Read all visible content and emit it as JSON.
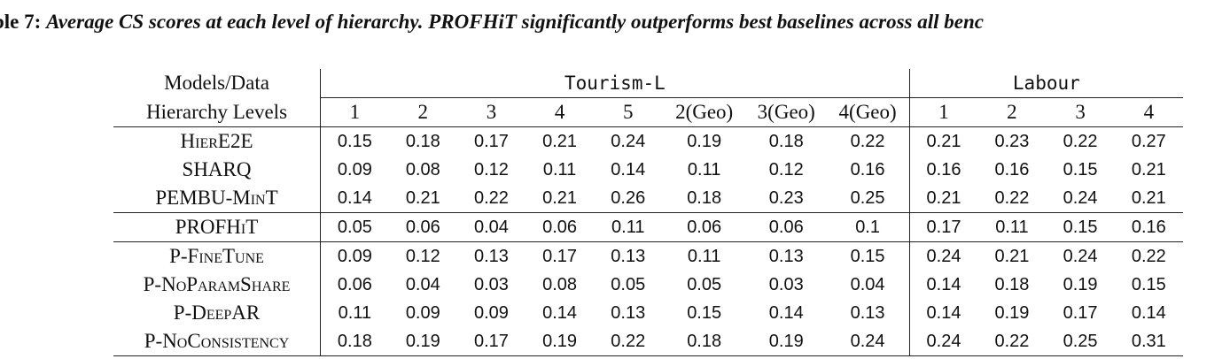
{
  "caption": {
    "label": "ble 7: ",
    "text": "Average CS scores at each level of hierarchy. PROFHiT significantly outperforms best baselines across all benc"
  },
  "table": {
    "corner_label": "Models/Data",
    "levels_label": "Hierarchy Levels",
    "groups": [
      {
        "name": "Tourism-L",
        "levels": [
          "1",
          "2",
          "3",
          "4",
          "5",
          "2(Geo)",
          "3(Geo)",
          "4(Geo)"
        ]
      },
      {
        "name": "Labour",
        "levels": [
          "1",
          "2",
          "3",
          "4"
        ]
      }
    ],
    "rows": [
      {
        "model": "HierE2E",
        "values": [
          "0.15",
          "0.18",
          "0.17",
          "0.21",
          "0.24",
          "0.19",
          "0.18",
          "0.22",
          "0.21",
          "0.23",
          "0.22",
          "0.27"
        ],
        "bold": []
      },
      {
        "model": "SHARQ",
        "values": [
          "0.09",
          "0.08",
          "0.12",
          "0.11",
          "0.14",
          "0.11",
          "0.12",
          "0.16",
          "0.16",
          "0.16",
          "0.15",
          "0.21"
        ],
        "bold": []
      },
      {
        "model": "PEMBU-MinT",
        "values": [
          "0.14",
          "0.21",
          "0.22",
          "0.21",
          "0.26",
          "0.18",
          "0.23",
          "0.25",
          "0.21",
          "0.22",
          "0.24",
          "0.21"
        ],
        "bold": []
      },
      {
        "model": "PROFHiT",
        "values": [
          "0.05",
          "0.06",
          "0.04",
          "0.06",
          "0.11",
          "0.06",
          "0.06",
          "0.1",
          "0.17",
          "0.11",
          "0.15",
          "0.16"
        ],
        "bold": [
          0,
          1,
          2,
          3,
          4,
          5,
          6,
          7,
          8,
          9,
          10,
          11
        ]
      },
      {
        "model": "P-FineTune",
        "values": [
          "0.09",
          "0.12",
          "0.13",
          "0.17",
          "0.13",
          "0.11",
          "0.13",
          "0.15",
          "0.24",
          "0.21",
          "0.24",
          "0.22"
        ],
        "bold": []
      },
      {
        "model": "P-NoParamShare",
        "values": [
          "0.06",
          "0.04",
          "0.03",
          "0.08",
          "0.05",
          "0.05",
          "0.03",
          "0.04",
          "0.14",
          "0.18",
          "0.19",
          "0.15"
        ],
        "bold": [
          1,
          2,
          4,
          5,
          6,
          7,
          8,
          11
        ]
      },
      {
        "model": "P-DeepAR",
        "values": [
          "0.11",
          "0.09",
          "0.09",
          "0.14",
          "0.13",
          "0.15",
          "0.14",
          "0.13",
          "0.14",
          "0.19",
          "0.17",
          "0.14"
        ],
        "bold": []
      },
      {
        "model": "P-NoConsistency",
        "values": [
          "0.18",
          "0.19",
          "0.17",
          "0.19",
          "0.22",
          "0.18",
          "0.19",
          "0.24",
          "0.24",
          "0.22",
          "0.25",
          "0.31"
        ],
        "bold": []
      }
    ]
  }
}
